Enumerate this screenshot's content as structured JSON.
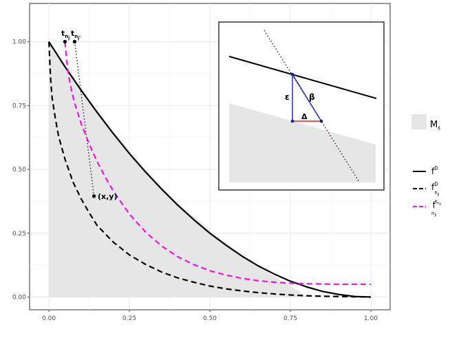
{
  "chart_data": {
    "type": "line",
    "title": "",
    "xlabel": "",
    "ylabel": "",
    "xlim": [
      -0.06,
      1.06
    ],
    "ylim": [
      -0.05,
      1.15
    ],
    "x_ticks": [
      0.0,
      0.25,
      0.5,
      0.75,
      1.0
    ],
    "x_tick_labels": [
      "0.00",
      "0.25",
      "0.50",
      "0.75",
      "1.00"
    ],
    "y_ticks": [
      0.0,
      0.25,
      0.5,
      0.75,
      1.0
    ],
    "y_tick_labels": [
      "0.00",
      "0.25",
      "0.50",
      "0.75",
      "1.00"
    ],
    "grid": true,
    "series": [
      {
        "name": "f^0",
        "style": "solid",
        "color": "#000000",
        "points": [
          [
            0.0,
            1.0
          ],
          [
            0.05,
            0.902
          ],
          [
            0.1,
            0.81
          ],
          [
            0.15,
            0.723
          ],
          [
            0.2,
            0.64
          ],
          [
            0.25,
            0.562
          ],
          [
            0.3,
            0.49
          ],
          [
            0.35,
            0.423
          ],
          [
            0.4,
            0.36
          ],
          [
            0.45,
            0.303
          ],
          [
            0.5,
            0.25
          ],
          [
            0.55,
            0.203
          ],
          [
            0.6,
            0.16
          ],
          [
            0.65,
            0.122
          ],
          [
            0.7,
            0.09
          ],
          [
            0.75,
            0.062
          ],
          [
            0.8,
            0.04
          ],
          [
            0.85,
            0.022
          ],
          [
            0.9,
            0.01
          ],
          [
            0.95,
            0.002
          ],
          [
            1.0,
            0.0
          ]
        ]
      },
      {
        "name": "f^0_{n_jl}",
        "style": "dashed",
        "color": "#000000",
        "points": [
          [
            0.0,
            1.0
          ],
          [
            0.005,
            0.86
          ],
          [
            0.01,
            0.78
          ],
          [
            0.02,
            0.7
          ],
          [
            0.03,
            0.63
          ],
          [
            0.05,
            0.54
          ],
          [
            0.075,
            0.45
          ],
          [
            0.1,
            0.385
          ],
          [
            0.125,
            0.33
          ],
          [
            0.15,
            0.28
          ],
          [
            0.2,
            0.215
          ],
          [
            0.25,
            0.165
          ],
          [
            0.3,
            0.128
          ],
          [
            0.35,
            0.098
          ],
          [
            0.4,
            0.075
          ],
          [
            0.45,
            0.058
          ],
          [
            0.5,
            0.043
          ],
          [
            0.55,
            0.032
          ],
          [
            0.6,
            0.024
          ],
          [
            0.65,
            0.017
          ],
          [
            0.7,
            0.012
          ],
          [
            0.75,
            0.008
          ],
          [
            0.8,
            0.005
          ],
          [
            0.85,
            0.003
          ],
          [
            0.9,
            0.002
          ],
          [
            0.95,
            0.001
          ],
          [
            1.0,
            0.0
          ]
        ]
      },
      {
        "name": "f^{t_{n_jl}}_{n_jl}",
        "style": "dashed",
        "color": "#ee12e4",
        "points": [
          [
            0.05,
            1.0
          ],
          [
            0.055,
            0.93
          ],
          [
            0.06,
            0.875
          ],
          [
            0.07,
            0.81
          ],
          [
            0.08,
            0.76
          ],
          [
            0.1,
            0.68
          ],
          [
            0.125,
            0.6
          ],
          [
            0.15,
            0.53
          ],
          [
            0.175,
            0.47
          ],
          [
            0.2,
            0.415
          ],
          [
            0.25,
            0.325
          ],
          [
            0.3,
            0.255
          ],
          [
            0.35,
            0.2
          ],
          [
            0.4,
            0.158
          ],
          [
            0.45,
            0.127
          ],
          [
            0.5,
            0.103
          ],
          [
            0.55,
            0.086
          ],
          [
            0.6,
            0.073
          ],
          [
            0.65,
            0.064
          ],
          [
            0.7,
            0.058
          ],
          [
            0.75,
            0.054
          ],
          [
            0.8,
            0.052
          ],
          [
            0.85,
            0.051
          ],
          [
            0.9,
            0.05
          ],
          [
            0.95,
            0.05
          ],
          [
            1.0,
            0.05
          ]
        ]
      }
    ],
    "region": {
      "name": "M_ε",
      "color": "#e6e6e6",
      "points": [
        [
          0.0,
          0.0
        ],
        [
          0.0,
          1.0
        ],
        [
          0.1,
          0.82
        ],
        [
          0.2,
          0.65
        ],
        [
          0.3,
          0.5
        ],
        [
          0.4,
          0.37
        ],
        [
          0.5,
          0.26
        ],
        [
          0.6,
          0.165
        ],
        [
          0.7,
          0.08
        ],
        [
          0.78,
          0.02
        ],
        [
          0.8,
          0.0
        ]
      ]
    },
    "guide_line": {
      "style": "dotted",
      "color": "#000000",
      "points": [
        [
          0.08,
          1.0
        ],
        [
          0.14,
          0.395
        ]
      ]
    },
    "points": [
      {
        "label": "t_{n_j}",
        "x": 0.05,
        "y": 1.0
      },
      {
        "label": "t_{n_j'}",
        "x": 0.08,
        "y": 1.0
      },
      {
        "label": "(x,y)",
        "x": 0.14,
        "y": 0.395
      }
    ],
    "legend": {
      "position": "right",
      "fill_entries": [
        {
          "label": "M_ε",
          "color": "#e6e6e6"
        }
      ],
      "line_entries": [
        {
          "label": "f^0",
          "style": "solid",
          "color": "#000000"
        },
        {
          "label": "f^0_{n_jl}",
          "style": "dashed",
          "color": "#000000"
        },
        {
          "label": "f^{t_{n_jl}}_{n_jl}",
          "style": "dashed",
          "color": "#ee12e4"
        }
      ]
    },
    "inset": {
      "position": "top-right",
      "labels": {
        "epsilon": "ε",
        "beta": "β",
        "delta": "Δ"
      },
      "colors": {
        "epsilon_beta": "#1f2fd6",
        "delta": "#d62626",
        "points": "#1b1b8f"
      }
    }
  },
  "text": {
    "t_nj_main": "t",
    "t_nj_sub": "n",
    "t_nj_subsub": "j",
    "t_njp_main": "t",
    "t_njp_sub": "n",
    "t_njp_subsub": "j'",
    "point_xy": "(x,y)",
    "inset_epsilon": "ε",
    "inset_beta": "β",
    "inset_delta": "Δ",
    "legend_region_main": "M",
    "legend_region_sub": "ε",
    "legend_f0_main": "f",
    "legend_f0_sup": "0",
    "legend_fnjl_main": "f",
    "legend_fnjl_sup": "0",
    "legend_fnjl_sub": "n",
    "legend_fnjl_subsub": "jl",
    "legend_ft_main": "f",
    "legend_ft_sup": "t",
    "legend_ft_sup_sub": "n",
    "legend_ft_sup_subsub": "jl",
    "legend_ft_sub": "n",
    "legend_ft_subsub": "jl"
  }
}
